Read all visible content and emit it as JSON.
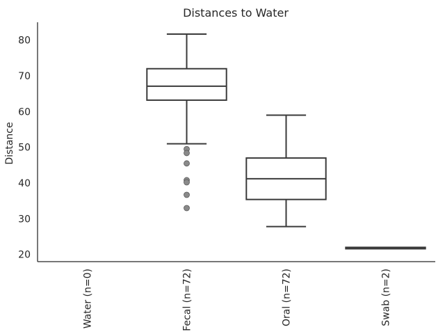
{
  "chart_data": {
    "type": "box",
    "title": "Distances to Water",
    "xlabel": "",
    "ylabel": "Distance",
    "ylim": [
      18,
      85
    ],
    "yticks": [
      20,
      30,
      40,
      50,
      60,
      70,
      80
    ],
    "grid": false,
    "categories": [
      "Water (n=0)",
      "Fecal (n=72)",
      "Oral (n=72)",
      "Swab (n=2)"
    ],
    "boxes": [
      {
        "category": "Water (n=0)"
      },
      {
        "category": "Fecal (n=72)",
        "whisker_low": 51.0,
        "q1": 63.2,
        "median": 67.1,
        "q3": 72.0,
        "whisker_high": 81.7,
        "outliers": [
          49.5,
          48.4,
          45.5,
          40.8,
          40.2,
          36.7,
          33.0
        ]
      },
      {
        "category": "Oral (n=72)",
        "whisker_low": 27.8,
        "q1": 35.4,
        "median": 41.2,
        "q3": 47.0,
        "whisker_high": 59.0,
        "outliers": []
      },
      {
        "category": "Swab (n=2)",
        "whisker_low": 21.6,
        "q1": 21.6,
        "median": 21.8,
        "q3": 22.0,
        "whisker_high": 22.0,
        "outliers": []
      }
    ]
  }
}
